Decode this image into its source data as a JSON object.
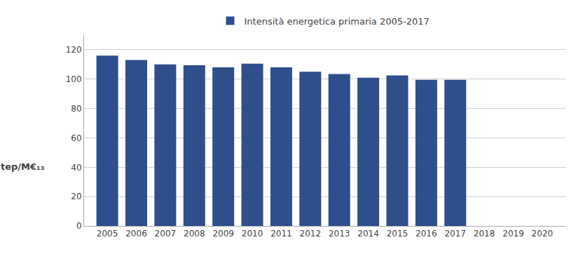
{
  "chart_data": {
    "type": "bar",
    "ylabel": "tep/M€₁₃",
    "x": [
      2005,
      2006,
      2007,
      2008,
      2009,
      2010,
      2011,
      2012,
      2013,
      2014,
      2015,
      2016,
      2017,
      2018,
      2019,
      2020
    ],
    "series": [
      {
        "name": "Intensità energetica primaria 2005-2017",
        "color": "#2E4E8C",
        "values": [
          116,
          113,
          110,
          109.5,
          108,
          110.5,
          108,
          105,
          103.5,
          101,
          102.5,
          99.5,
          99.5,
          null,
          null,
          null
        ]
      }
    ],
    "xlim": [
      2004.2,
      2020.8
    ],
    "xticks": [
      2005,
      2006,
      2007,
      2008,
      2009,
      2010,
      2011,
      2012,
      2013,
      2014,
      2015,
      2016,
      2017,
      2018,
      2019,
      2020
    ],
    "ylim": [
      0,
      130
    ],
    "yticks": [
      0,
      20,
      40,
      60,
      80,
      100,
      120
    ],
    "grid": true,
    "legend": "top"
  }
}
